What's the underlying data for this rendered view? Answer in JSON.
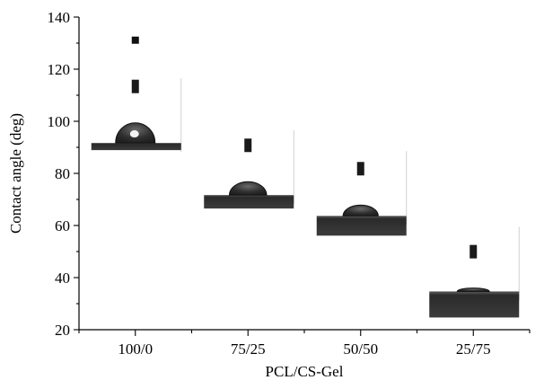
{
  "chart_data": {
    "type": "scatter",
    "title": "",
    "xlabel": "PCL/CS-Gel",
    "ylabel": "Contact angle (deg)",
    "categories": [
      "100/0",
      "75/25",
      "50/50",
      "25/75"
    ],
    "values": [
      91,
      71,
      63,
      34
    ],
    "ylim": [
      20,
      140
    ],
    "yticks": [
      20,
      40,
      60,
      80,
      100,
      120,
      140
    ],
    "grid": false,
    "legend": "none",
    "marker_style": "water droplet photograph inset per category",
    "droplet_inset_colors": {
      "substrate": "#3a3a3a",
      "droplet": "#2e2e2e",
      "needle": "#1a1a1a",
      "background": "#ffffff"
    }
  }
}
